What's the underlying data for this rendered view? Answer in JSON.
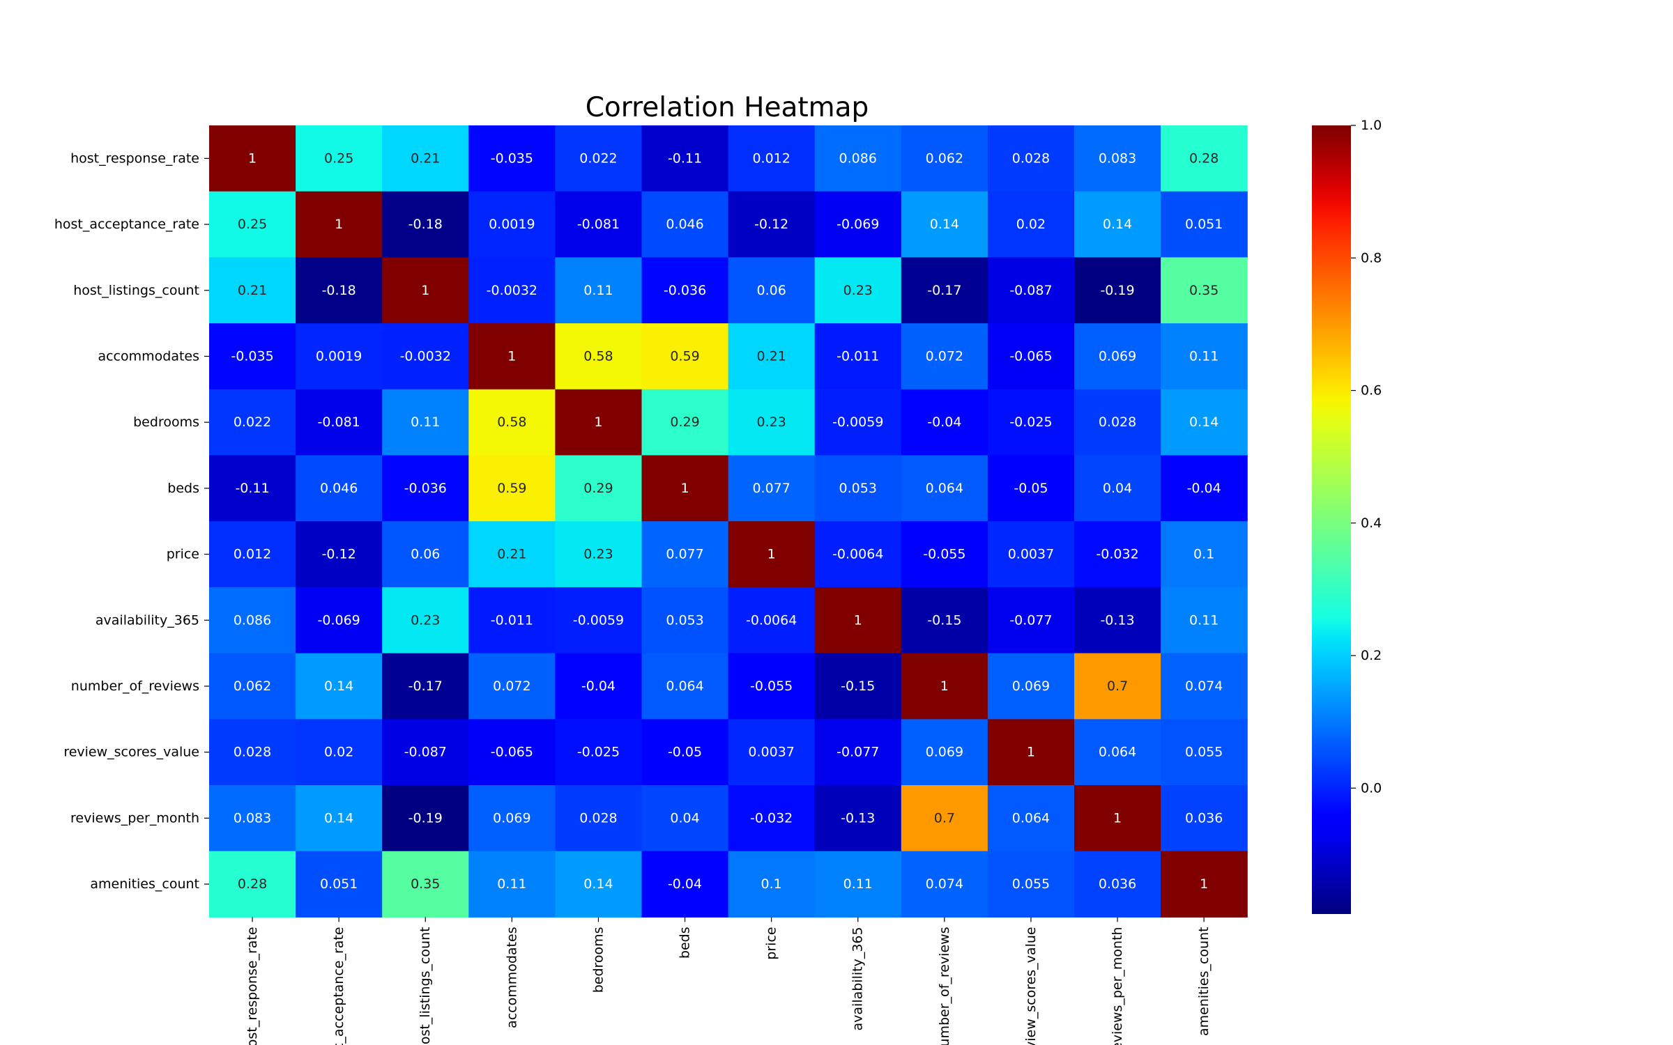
{
  "chart_data": {
    "type": "heatmap",
    "title": "Correlation Heatmap",
    "colormap": "jet",
    "annotated": true,
    "rows": [
      "host_response_rate",
      "host_acceptance_rate",
      "host_listings_count",
      "accommodates",
      "bedrooms",
      "beds",
      "price",
      "availability_365",
      "number_of_reviews",
      "review_scores_value",
      "reviews_per_month",
      "amenities_count"
    ],
    "columns": [
      "host_response_rate",
      "host_acceptance_rate",
      "host_listings_count",
      "accommodates",
      "bedrooms",
      "beds",
      "price",
      "availability_365",
      "number_of_reviews",
      "review_scores_value",
      "reviews_per_month",
      "amenities_count"
    ],
    "labels": [
      [
        "1",
        "0.25",
        "0.21",
        "-0.035",
        "0.022",
        "-0.11",
        "0.012",
        "0.086",
        "0.062",
        "0.028",
        "0.083",
        "0.28"
      ],
      [
        "0.25",
        "1",
        "-0.18",
        "0.0019",
        "-0.081",
        "0.046",
        "-0.12",
        "-0.069",
        "0.14",
        "0.02",
        "0.14",
        "0.051"
      ],
      [
        "0.21",
        "-0.18",
        "1",
        "-0.0032",
        "0.11",
        "-0.036",
        "0.06",
        "0.23",
        "-0.17",
        "-0.087",
        "-0.19",
        "0.35"
      ],
      [
        "-0.035",
        "0.0019",
        "-0.0032",
        "1",
        "0.58",
        "0.59",
        "0.21",
        "-0.011",
        "0.072",
        "-0.065",
        "0.069",
        "0.11"
      ],
      [
        "0.022",
        "-0.081",
        "0.11",
        "0.58",
        "1",
        "0.29",
        "0.23",
        "-0.0059",
        "-0.04",
        "-0.025",
        "0.028",
        "0.14"
      ],
      [
        "-0.11",
        "0.046",
        "-0.036",
        "0.59",
        "0.29",
        "1",
        "0.077",
        "0.053",
        "0.064",
        "-0.05",
        "0.04",
        "-0.04"
      ],
      [
        "0.012",
        "-0.12",
        "0.06",
        "0.21",
        "0.23",
        "0.077",
        "1",
        "-0.0064",
        "-0.055",
        "0.0037",
        "-0.032",
        "0.1"
      ],
      [
        "0.086",
        "-0.069",
        "0.23",
        "-0.011",
        "-0.0059",
        "0.053",
        "-0.0064",
        "1",
        "-0.15",
        "-0.077",
        "-0.13",
        "0.11"
      ],
      [
        "0.062",
        "0.14",
        "-0.17",
        "0.072",
        "-0.04",
        "0.064",
        "-0.055",
        "-0.15",
        "1",
        "0.069",
        "0.7",
        "0.074"
      ],
      [
        "0.028",
        "0.02",
        "-0.087",
        "-0.065",
        "-0.025",
        "-0.05",
        "0.0037",
        "-0.077",
        "0.069",
        "1",
        "0.064",
        "0.055"
      ],
      [
        "0.083",
        "0.14",
        "-0.19",
        "0.069",
        "0.028",
        "0.04",
        "-0.032",
        "-0.13",
        "0.7",
        "0.064",
        "1",
        "0.036"
      ],
      [
        "0.28",
        "0.051",
        "0.35",
        "0.11",
        "0.14",
        "-0.04",
        "0.1",
        "0.11",
        "0.074",
        "0.055",
        "0.036",
        "1"
      ]
    ],
    "colorbar": {
      "vmin": -0.19,
      "vmax": 1.0,
      "ticks": [
        0.0,
        0.2,
        0.4,
        0.6,
        0.8,
        1.0
      ],
      "tick_labels": [
        "0.0",
        "0.2",
        "0.4",
        "0.6",
        "0.8",
        "1.0"
      ]
    },
    "grid": false,
    "legend": "colorbar-right"
  }
}
